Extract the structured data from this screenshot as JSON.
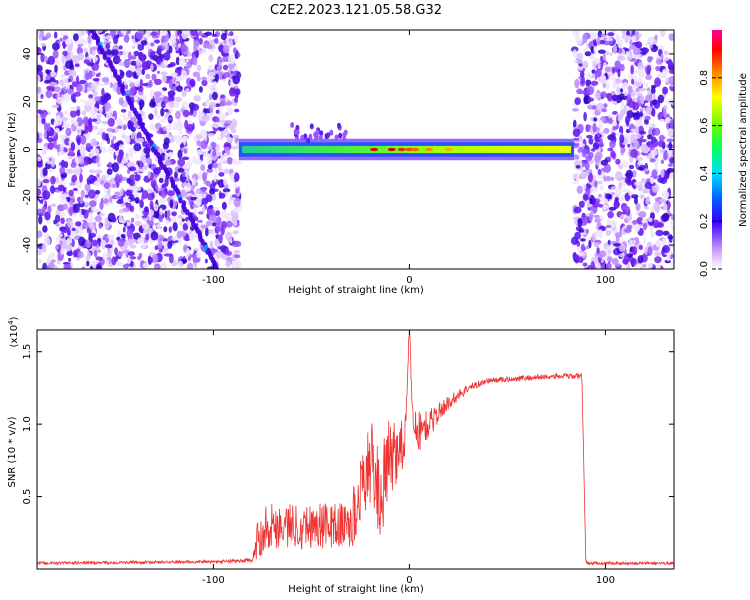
{
  "title": "C2E2.2023.121.05.58.G32",
  "chart_data": [
    {
      "type": "heatmap",
      "xlabel": "Height of straight line (km)",
      "ylabel": "Frequency (Hz)",
      "xlim": [
        -190,
        135
      ],
      "ylim": [
        -50,
        50
      ],
      "x_ticks": [
        -100,
        0,
        100
      ],
      "y_ticks": [
        -40,
        -20,
        0,
        20,
        40
      ],
      "colorbar": {
        "label": "Normalized spectral amplitude",
        "range": [
          0.0,
          1.0
        ],
        "ticks": [
          0.0,
          0.2,
          0.4,
          0.6,
          0.8
        ]
      },
      "features": {
        "noise_regions_km": [
          [
            -190,
            -87
          ],
          [
            84,
            135
          ]
        ],
        "empty_region_km": [
          -87,
          84
        ],
        "signal_band_hz": [
          -3,
          3
        ],
        "diagonal_streak": {
          "from": [
            -162,
            50
          ],
          "to": [
            -98,
            -50
          ]
        }
      }
    },
    {
      "type": "line",
      "xlabel": "Height of straight line (km)",
      "ylabel": "SNR (10 * v/v)",
      "y_multiplier": "(x10",
      "y_multiplier_exp": "4",
      "y_multiplier_close": ")",
      "xlim": [
        -190,
        135
      ],
      "ylim": [
        0,
        16500
      ],
      "x_ticks": [
        -100,
        0,
        100
      ],
      "y_ticks": [
        5000,
        10000,
        15000
      ],
      "y_tick_labels": [
        "0.5",
        "1.0",
        "1.5"
      ],
      "color": "#ee3333",
      "series": [
        {
          "x": [
            -190,
            -100,
            -80,
            -77,
            -73,
            -60,
            -45,
            -33,
            -28,
            -25,
            -20,
            -15,
            -10,
            -5,
            -2,
            0,
            2,
            5,
            10,
            15,
            20,
            30,
            40,
            60,
            75,
            88,
            90,
            91,
            100,
            135
          ],
          "y": [
            400,
            500,
            600,
            2200,
            3000,
            3000,
            3000,
            3000,
            3500,
            5500,
            7500,
            5000,
            7500,
            8500,
            9000,
            16500,
            10000,
            9500,
            10000,
            10800,
            11500,
            12500,
            13000,
            13200,
            13300,
            13300,
            600,
            400,
            400,
            400
          ],
          "noise": [
            100,
            100,
            150,
            1600,
            1600,
            1600,
            1600,
            1600,
            2500,
            2000,
            3000,
            3000,
            3000,
            2000,
            2000,
            500,
            1500,
            1500,
            1000,
            700,
            500,
            300,
            200,
            200,
            200,
            200,
            100,
            100,
            100,
            100
          ]
        }
      ]
    }
  ]
}
